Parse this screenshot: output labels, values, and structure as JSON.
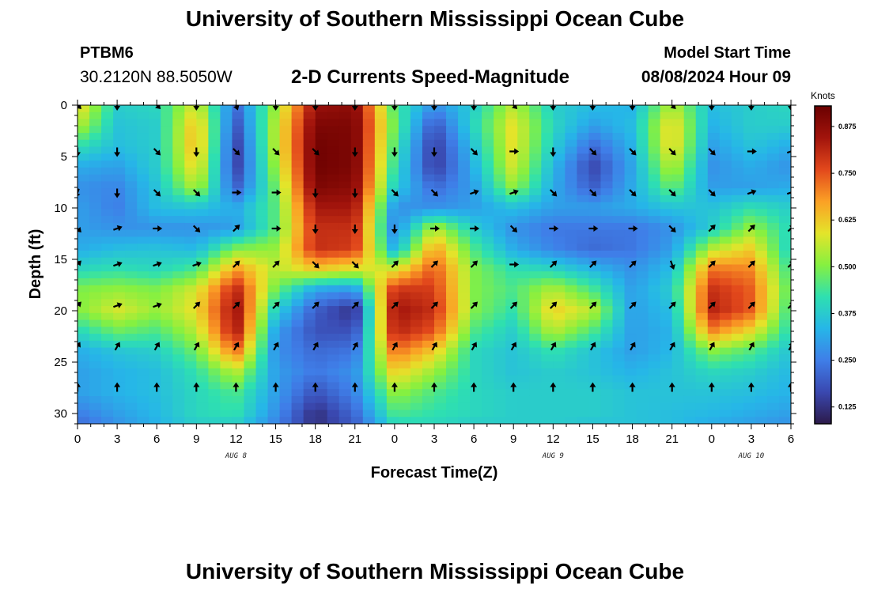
{
  "header": {
    "title": "University of Southern Mississippi Ocean Cube",
    "station_id": "PTBM6",
    "coordinates": "30.2120N  88.5050W",
    "plot_title": "2-D Currents Speed-Magnitude",
    "model_label": "Model Start Time",
    "model_time": "08/08/2024 Hour 09"
  },
  "footer": {
    "title": "University of Southern Mississippi Ocean Cube"
  },
  "colors": {
    "colormap": [
      "#2c1a4a",
      "#3a48b0",
      "#3f7ee8",
      "#26b6e8",
      "#2ee0b0",
      "#86f040",
      "#e4e42a",
      "#fba025",
      "#e2481c",
      "#a2140c",
      "#6a0000"
    ],
    "arrow": "#000000"
  },
  "chart_data": {
    "type": "heatmap",
    "title": "2-D Currents Speed-Magnitude",
    "xlabel": "Forecast Time(Z)",
    "ylabel": "Depth (ft)",
    "x_tick_labels": [
      "0",
      "3",
      "6",
      "9",
      "12",
      "15",
      "18",
      "21",
      "0",
      "3",
      "6",
      "9",
      "12",
      "15",
      "18",
      "21",
      "0",
      "3",
      "6"
    ],
    "x_hours": [
      0,
      54
    ],
    "date_labels": [
      {
        "label": "AUG 8",
        "hour": 12
      },
      {
        "label": "AUG 9",
        "hour": 36
      },
      {
        "label": "AUG 10",
        "hour": 51
      }
    ],
    "y_ticks": [
      0,
      5,
      10,
      15,
      20,
      25,
      30
    ],
    "ylim": [
      0,
      31
    ],
    "colorbar": {
      "units": "Knots",
      "range": [
        0.08,
        0.93
      ],
      "ticks": [
        0.125,
        0.25,
        0.375,
        0.5,
        0.625,
        0.75,
        0.875
      ],
      "tick_labels": [
        "0.125",
        "0.250",
        "0.375",
        "0.500",
        "0.625",
        "0.750",
        "0.875"
      ]
    },
    "arrow_hours": [
      0,
      3,
      6,
      9,
      12,
      15,
      18,
      21,
      24,
      27,
      30,
      33,
      36,
      39,
      42,
      45,
      48,
      51,
      54
    ],
    "arrow_depths": [
      0,
      4.5,
      8.5,
      12,
      15.5,
      19.5,
      23.5,
      27.5
    ],
    "arrow_directions_deg": [
      [
        135,
        180,
        135,
        180,
        160,
        180,
        180,
        180,
        180,
        180,
        180,
        135,
        180,
        180,
        180,
        135,
        180,
        180,
        180
      ],
      [
        180,
        180,
        135,
        180,
        135,
        135,
        135,
        180,
        180,
        180,
        135,
        90,
        180,
        135,
        135,
        135,
        135,
        90,
        70
      ],
      [
        200,
        180,
        135,
        135,
        90,
        90,
        180,
        180,
        135,
        135,
        70,
        70,
        135,
        135,
        135,
        135,
        135,
        70,
        70
      ],
      [
        135,
        70,
        90,
        135,
        45,
        90,
        180,
        180,
        180,
        90,
        90,
        135,
        90,
        90,
        90,
        135,
        45,
        45,
        45
      ],
      [
        45,
        70,
        70,
        70,
        45,
        45,
        135,
        135,
        45,
        45,
        45,
        90,
        45,
        45,
        45,
        160,
        45,
        45,
        45
      ],
      [
        45,
        70,
        70,
        45,
        45,
        45,
        45,
        45,
        45,
        45,
        45,
        45,
        45,
        45,
        45,
        45,
        45,
        45,
        45
      ],
      [
        30,
        30,
        30,
        30,
        30,
        30,
        30,
        30,
        30,
        30,
        30,
        30,
        30,
        30,
        30,
        30,
        30,
        30,
        30
      ],
      [
        0,
        0,
        0,
        0,
        0,
        0,
        0,
        0,
        0,
        0,
        0,
        0,
        0,
        0,
        0,
        0,
        0,
        0,
        0
      ]
    ],
    "speed_grid_depths": [
      0,
      2,
      4,
      6,
      8,
      10,
      12,
      14,
      16,
      18,
      20,
      22,
      24,
      26,
      28,
      30,
      31
    ],
    "speed_grid_hours": [
      0,
      3,
      6,
      9,
      12,
      15,
      18,
      21,
      24,
      27,
      30,
      33,
      36,
      39,
      42,
      45,
      48,
      51,
      54
    ],
    "speed_knots": [
      [
        0.62,
        0.38,
        0.4,
        0.58,
        0.22,
        0.52,
        0.86,
        0.88,
        0.45,
        0.28,
        0.38,
        0.55,
        0.38,
        0.35,
        0.33,
        0.55,
        0.35,
        0.38,
        0.4
      ],
      [
        0.55,
        0.36,
        0.38,
        0.65,
        0.18,
        0.55,
        0.9,
        0.9,
        0.48,
        0.18,
        0.4,
        0.6,
        0.4,
        0.3,
        0.35,
        0.62,
        0.33,
        0.38,
        0.38
      ],
      [
        0.42,
        0.35,
        0.38,
        0.66,
        0.15,
        0.55,
        0.92,
        0.9,
        0.45,
        0.14,
        0.36,
        0.6,
        0.38,
        0.22,
        0.33,
        0.62,
        0.3,
        0.36,
        0.32
      ],
      [
        0.32,
        0.3,
        0.38,
        0.62,
        0.15,
        0.52,
        0.92,
        0.9,
        0.42,
        0.14,
        0.33,
        0.58,
        0.34,
        0.16,
        0.31,
        0.56,
        0.28,
        0.32,
        0.28
      ],
      [
        0.28,
        0.26,
        0.36,
        0.55,
        0.2,
        0.48,
        0.9,
        0.88,
        0.38,
        0.22,
        0.3,
        0.52,
        0.32,
        0.2,
        0.32,
        0.48,
        0.3,
        0.3,
        0.32
      ],
      [
        0.3,
        0.25,
        0.35,
        0.36,
        0.32,
        0.46,
        0.84,
        0.84,
        0.28,
        0.28,
        0.3,
        0.35,
        0.3,
        0.3,
        0.32,
        0.36,
        0.36,
        0.42,
        0.38
      ],
      [
        0.3,
        0.28,
        0.28,
        0.28,
        0.3,
        0.46,
        0.8,
        0.8,
        0.26,
        0.55,
        0.38,
        0.28,
        0.24,
        0.24,
        0.24,
        0.28,
        0.38,
        0.52,
        0.4
      ],
      [
        0.32,
        0.35,
        0.36,
        0.34,
        0.5,
        0.52,
        0.8,
        0.78,
        0.32,
        0.68,
        0.45,
        0.32,
        0.26,
        0.22,
        0.24,
        0.3,
        0.55,
        0.62,
        0.38
      ],
      [
        0.4,
        0.42,
        0.4,
        0.45,
        0.68,
        0.55,
        0.62,
        0.58,
        0.58,
        0.75,
        0.5,
        0.42,
        0.4,
        0.34,
        0.28,
        0.35,
        0.72,
        0.7,
        0.42
      ],
      [
        0.5,
        0.52,
        0.5,
        0.58,
        0.82,
        0.48,
        0.3,
        0.28,
        0.8,
        0.78,
        0.5,
        0.45,
        0.55,
        0.45,
        0.3,
        0.38,
        0.8,
        0.74,
        0.45
      ],
      [
        0.5,
        0.58,
        0.52,
        0.6,
        0.86,
        0.38,
        0.2,
        0.12,
        0.85,
        0.8,
        0.5,
        0.42,
        0.62,
        0.55,
        0.3,
        0.35,
        0.82,
        0.74,
        0.42
      ],
      [
        0.4,
        0.48,
        0.45,
        0.55,
        0.84,
        0.3,
        0.18,
        0.18,
        0.82,
        0.75,
        0.45,
        0.38,
        0.55,
        0.45,
        0.3,
        0.33,
        0.7,
        0.6,
        0.4
      ],
      [
        0.32,
        0.36,
        0.38,
        0.48,
        0.72,
        0.28,
        0.22,
        0.24,
        0.72,
        0.62,
        0.4,
        0.36,
        0.42,
        0.36,
        0.3,
        0.34,
        0.5,
        0.45,
        0.36
      ],
      [
        0.3,
        0.33,
        0.35,
        0.42,
        0.55,
        0.3,
        0.24,
        0.28,
        0.62,
        0.52,
        0.4,
        0.36,
        0.38,
        0.36,
        0.33,
        0.36,
        0.4,
        0.38,
        0.34
      ],
      [
        0.3,
        0.33,
        0.35,
        0.4,
        0.45,
        0.3,
        0.18,
        0.26,
        0.52,
        0.45,
        0.4,
        0.38,
        0.38,
        0.38,
        0.36,
        0.36,
        0.36,
        0.35,
        0.33
      ],
      [
        0.25,
        0.3,
        0.34,
        0.4,
        0.42,
        0.28,
        0.12,
        0.22,
        0.45,
        0.42,
        0.4,
        0.38,
        0.38,
        0.38,
        0.36,
        0.35,
        0.34,
        0.32,
        0.3
      ],
      [
        0.22,
        0.28,
        0.33,
        0.38,
        0.38,
        0.26,
        0.12,
        0.2,
        0.4,
        0.4,
        0.38,
        0.38,
        0.38,
        0.36,
        0.36,
        0.35,
        0.32,
        0.3,
        0.28
      ]
    ]
  }
}
